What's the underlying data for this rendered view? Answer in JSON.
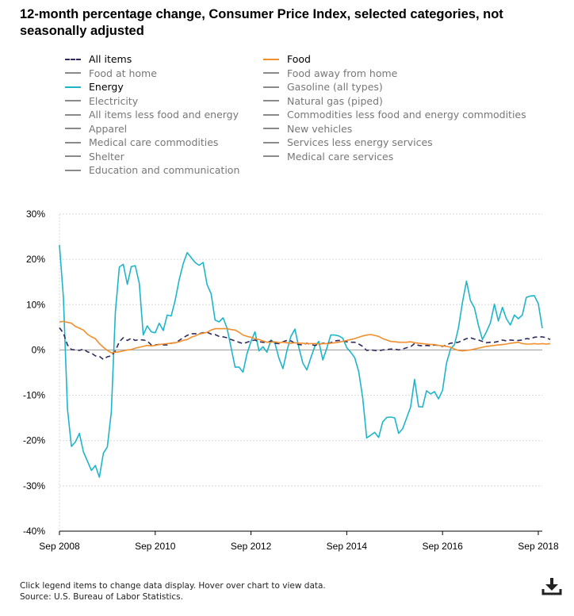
{
  "title": "12-month percentage change, Consumer Price Index, selected categories, not seasonally adjusted",
  "legend": [
    {
      "label": "All items",
      "color": "#2e2a5e",
      "style": "dash",
      "active": true
    },
    {
      "label": "Food",
      "color": "#f28e2b",
      "style": "solid",
      "active": true
    },
    {
      "label": "Food at home",
      "color": "#8a8a8a",
      "style": "solid",
      "active": false
    },
    {
      "label": "Food away from home",
      "color": "#8a8a8a",
      "style": "solid",
      "active": false
    },
    {
      "label": "Energy",
      "color": "#1fb5c9",
      "style": "solid",
      "active": true
    },
    {
      "label": "Gasoline (all types)",
      "color": "#8a8a8a",
      "style": "solid",
      "active": false
    },
    {
      "label": "Electricity",
      "color": "#8a8a8a",
      "style": "solid",
      "active": false
    },
    {
      "label": "Natural gas (piped)",
      "color": "#8a8a8a",
      "style": "solid",
      "active": false
    },
    {
      "label": "All items less food and energy",
      "color": "#8a8a8a",
      "style": "solid",
      "active": false
    },
    {
      "label": "Commodities less food and energy commodities",
      "color": "#8a8a8a",
      "style": "solid",
      "active": false
    },
    {
      "label": "Apparel",
      "color": "#8a8a8a",
      "style": "solid",
      "active": false
    },
    {
      "label": "New vehicles",
      "color": "#8a8a8a",
      "style": "solid",
      "active": false
    },
    {
      "label": "Medical care commodities",
      "color": "#8a8a8a",
      "style": "solid",
      "active": false
    },
    {
      "label": "Services less energy services",
      "color": "#8a8a8a",
      "style": "solid",
      "active": false
    },
    {
      "label": "Shelter",
      "color": "#8a8a8a",
      "style": "solid",
      "active": false
    },
    {
      "label": "Medical care services",
      "color": "#8a8a8a",
      "style": "solid",
      "active": false
    },
    {
      "label": "Education and communication",
      "color": "#8a8a8a",
      "style": "solid",
      "active": false
    }
  ],
  "footer": {
    "instructions": "Click legend items to change data display. Hover over chart to view data.",
    "source": "Source: U.S. Bureau of Labor Statistics."
  },
  "icons": {
    "download": "download-icon"
  },
  "chart_data": {
    "type": "line",
    "title": "12-month percentage change, Consumer Price Index, selected categories, not seasonally adjusted",
    "x_start": "Sep 2008",
    "x_end": "Sep 2018",
    "frequency": "monthly",
    "xticks": [
      "Sep 2008",
      "Sep 2010",
      "Sep 2012",
      "Sep 2014",
      "Sep 2016",
      "Sep 2018"
    ],
    "yticks": [
      "30%",
      "20%",
      "10%",
      "0%",
      "-10%",
      "-20%",
      "-30%",
      "-40%"
    ],
    "ylim": [
      -40,
      30
    ],
    "grid": true,
    "xlabel": "",
    "ylabel": "",
    "series": [
      {
        "name": "Energy",
        "color": "#1fb5c9",
        "dash": false,
        "values": [
          23.2,
          11.5,
          -13,
          -21.3,
          -20.3,
          -18.4,
          -22.5,
          -24.5,
          -26.6,
          -25.5,
          -28.1,
          -22.8,
          -21.4,
          -13.7,
          8.3,
          18.3,
          18.9,
          14.5,
          18.4,
          18.6,
          14.7,
          3.3,
          5.3,
          4.0,
          3.8,
          5.9,
          4.3,
          7.7,
          7.5,
          11.0,
          15.5,
          19.0,
          21.5,
          20.4,
          19.3,
          18.7,
          19.3,
          14.4,
          12.4,
          6.6,
          6.2,
          7.1,
          4.8,
          0.6,
          -3.8,
          -3.8,
          -4.9,
          -0.8,
          1.9,
          4.0,
          -0.2,
          0.7,
          -0.5,
          2.2,
          1.5,
          -1.8,
          -4.1,
          -0.2,
          3.0,
          4.6,
          0.5,
          -2.9,
          -4.4,
          -1.7,
          0.8,
          1.9,
          -2.2,
          0.4,
          3.3,
          3.3,
          3.1,
          2.6,
          0.5,
          -0.5,
          -1.7,
          -4.8,
          -10.6,
          -19.4,
          -18.8,
          -18.2,
          -19.3,
          -15.9,
          -14.9,
          -14.8,
          -15.0,
          -18.4,
          -17.4,
          -15.0,
          -12.6,
          -6.5,
          -12.5,
          -12.6,
          -9.0,
          -9.7,
          -9.2,
          -10.8,
          -8.9,
          -2.9,
          0.2,
          1.2,
          4.9,
          10.5,
          15.2,
          10.9,
          9.3,
          5.4,
          2.3,
          4.0,
          6.0,
          10.1,
          6.4,
          9.4,
          6.9,
          5.5,
          7.7,
          6.9,
          7.7,
          11.6,
          11.9,
          12.0,
          10.2,
          4.8
        ]
      },
      {
        "name": "All items",
        "color": "#2e2a5e",
        "dash": true,
        "values": [
          4.9,
          3.7,
          1.1,
          0.1,
          0.0,
          -0.1,
          0.2,
          -0.4,
          -0.7,
          -1.3,
          -1.4,
          -2.1,
          -1.5,
          -1.3,
          -0.2,
          1.8,
          2.7,
          2.1,
          2.6,
          2.1,
          2.3,
          2.2,
          2.0,
          1.1,
          1.1,
          1.2,
          1.1,
          1.1,
          1.5,
          1.6,
          2.1,
          2.7,
          3.2,
          3.6,
          3.6,
          3.6,
          3.8,
          3.9,
          3.5,
          3.4,
          3.0,
          2.9,
          2.7,
          2.3,
          2.0,
          1.7,
          1.4,
          1.7,
          2.0,
          2.2,
          1.8,
          1.7,
          1.6,
          2.0,
          1.5,
          1.4,
          1.8,
          2.1,
          2.0,
          1.5,
          1.2,
          1.1,
          1.5,
          1.2,
          1.0,
          1.2,
          1.5,
          1.5,
          1.6,
          2.0,
          2.1,
          2.0,
          1.8,
          1.7,
          1.7,
          1.3,
          0.8,
          -0.1,
          0.0,
          -0.1,
          -0.2,
          0.0,
          0.1,
          0.2,
          0.2,
          0.0,
          0.2,
          0.5,
          0.7,
          1.4,
          1.0,
          0.9,
          1.0,
          0.9,
          1.1,
          1.0,
          0.8,
          1.1,
          1.5,
          1.6,
          1.7,
          2.1,
          2.5,
          2.7,
          2.4,
          2.2,
          1.9,
          1.6,
          1.7,
          1.7,
          1.9,
          2.2,
          2.0,
          2.2,
          2.1,
          2.1,
          2.2,
          2.5,
          2.4,
          2.8,
          2.9,
          2.9,
          2.7,
          2.3
        ]
      },
      {
        "name": "Food",
        "color": "#f28e2b",
        "dash": false,
        "values": [
          6.2,
          6.3,
          6.1,
          5.9,
          5.2,
          4.8,
          4.4,
          3.5,
          2.9,
          2.5,
          1.4,
          0.6,
          -0.1,
          -0.6,
          -0.5,
          -0.4,
          -0.2,
          0.0,
          0.1,
          0.4,
          0.6,
          0.8,
          1.0,
          0.9,
          1.0,
          1.2,
          1.3,
          1.4,
          1.5,
          1.6,
          1.8,
          2.1,
          2.3,
          2.8,
          3.1,
          3.5,
          3.7,
          3.9,
          4.4,
          4.7,
          4.7,
          4.7,
          4.7,
          4.5,
          4.4,
          3.9,
          3.3,
          3.0,
          2.8,
          2.5,
          2.3,
          2.0,
          1.7,
          1.7,
          1.8,
          1.6,
          1.7,
          1.6,
          1.5,
          1.6,
          1.5,
          1.5,
          1.4,
          1.4,
          1.4,
          1.3,
          1.4,
          1.4,
          1.5,
          1.6,
          1.7,
          1.9,
          2.1,
          2.3,
          2.5,
          2.8,
          3.1,
          3.3,
          3.4,
          3.2,
          3.0,
          2.5,
          2.2,
          1.9,
          1.8,
          1.7,
          1.7,
          1.7,
          1.8,
          1.6,
          1.5,
          1.4,
          1.3,
          1.2,
          1.2,
          1.0,
          0.9,
          0.8,
          0.6,
          0.2,
          -0.1,
          -0.2,
          -0.1,
          0.0,
          0.2,
          0.4,
          0.6,
          0.8,
          0.9,
          1.0,
          1.1,
          1.2,
          1.3,
          1.5,
          1.6,
          1.7,
          1.4,
          1.3,
          1.3,
          1.4,
          1.3,
          1.4,
          1.3,
          1.4
        ]
      }
    ]
  }
}
